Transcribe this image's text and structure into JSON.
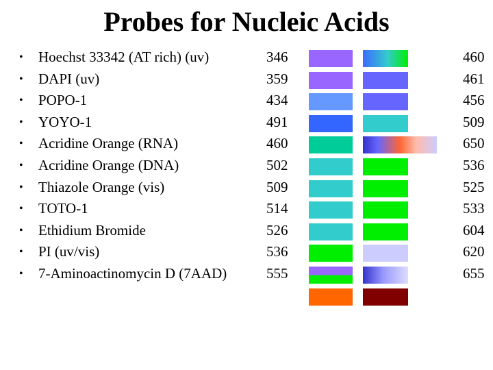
{
  "title": "Probes for Nucleic Acids",
  "bullet": "•",
  "probes": [
    {
      "name": "Hoechst 33342 (AT rich) (uv)",
      "excitation": "346",
      "emission": "460",
      "excitation_color": "#9966ff",
      "emission_color": "#3d6bff"
    },
    {
      "name": "DAPI (uv)",
      "excitation": "359",
      "emission": "461",
      "excitation_color": "#9966ff",
      "emission_color": "#6666ff"
    },
    {
      "name": "POPO-1",
      "excitation": "434",
      "emission": "456",
      "excitation_color": "#6699ff",
      "emission_color": "#6666ff"
    },
    {
      "name": "YOYO-1",
      "excitation": "491",
      "emission": "509",
      "excitation_color": "#3366ff",
      "emission_color": "#33cccc"
    },
    {
      "name": "Acridine Orange (RNA)",
      "excitation": "460",
      "emission": "650",
      "excitation_color": "#00cc99",
      "emission_color": "#ff6633"
    },
    {
      "name": "Acridine Orange (DNA)",
      "excitation": "502",
      "emission": "536",
      "excitation_color": "#33cccc",
      "emission_color": "#00ee00"
    },
    {
      "name": "Thiazole Orange (vis)",
      "excitation": "509",
      "emission": "525",
      "excitation_color": "#33cccc",
      "emission_color": "#00ee00"
    },
    {
      "name": "TOTO-1",
      "excitation": "514",
      "emission": "533",
      "excitation_color": "#33cccc",
      "emission_color": "#00ee00"
    },
    {
      "name": "Ethidium Bromide",
      "excitation": "526",
      "emission": "604",
      "excitation_color": "#33cccc",
      "emission_color": "#00ee00"
    },
    {
      "name": "PI  (uv/vis)",
      "excitation": "536",
      "emission": "620",
      "excitation_color": "#00ee00",
      "emission_color": "#ccccff"
    },
    {
      "name": "7-Aminoactinomycin D (7AAD)",
      "excitation": "555",
      "emission": "655",
      "excitation_color": "#9966ff",
      "emission_color": "#3333cc"
    }
  ],
  "extra_swatches": {
    "excitation_color": "#ff6600",
    "emission_color": "#800000"
  }
}
